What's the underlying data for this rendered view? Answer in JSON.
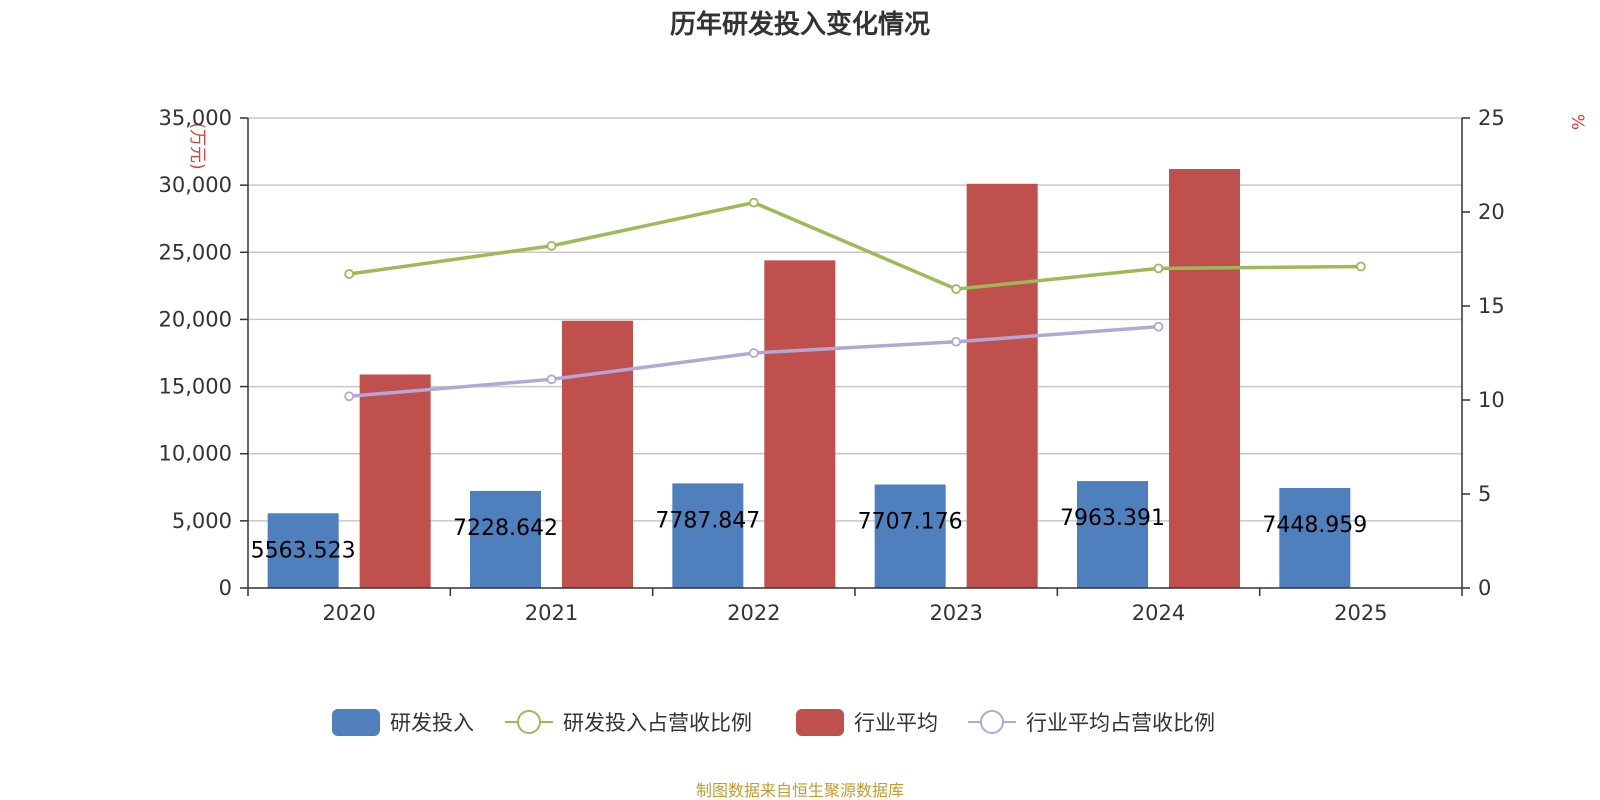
{
  "chart_data": {
    "type": "bar",
    "title": "历年研发投入变化情况",
    "categories": [
      "2020",
      "2021",
      "2022",
      "2023",
      "2024",
      "2025"
    ],
    "y_left": {
      "unit": "(万元)",
      "min": 0,
      "max": 35000,
      "ticks": [
        0,
        5000,
        10000,
        15000,
        20000,
        25000,
        30000,
        35000
      ],
      "tick_labels": [
        "0",
        "5,000",
        "10,000",
        "15,000",
        "20,000",
        "25,000",
        "30,000",
        "35,000"
      ]
    },
    "y_right": {
      "unit": "%",
      "min": 0,
      "max": 25,
      "ticks": [
        0,
        5,
        10,
        15,
        20,
        25
      ],
      "tick_labels": [
        "0",
        "5",
        "10",
        "15",
        "20",
        "25"
      ]
    },
    "grid": true,
    "legend_position": "bottom",
    "series": [
      {
        "name": "研发投入",
        "type": "bar",
        "axis": "left",
        "color": "#4f7fbd",
        "values": [
          5563.523,
          7228.642,
          7787.847,
          7707.176,
          7963.391,
          7448.959
        ],
        "labels": [
          "5563.523",
          "7228.642",
          "7787.847",
          "7707.176",
          "7963.391",
          "7448.959"
        ]
      },
      {
        "name": "研发投入占营收比例",
        "type": "line",
        "axis": "right",
        "color": "#9bbb59",
        "values": [
          16.7,
          18.2,
          20.5,
          15.9,
          17.0,
          17.1
        ]
      },
      {
        "name": "行业平均",
        "type": "bar",
        "axis": "left",
        "color": "#c0504d",
        "values": [
          15900,
          19900,
          24400,
          30100,
          31200,
          null
        ]
      },
      {
        "name": "行业平均占营收比例",
        "type": "line",
        "axis": "right",
        "color": "#b4a7d6",
        "values": [
          10.2,
          11.1,
          12.5,
          13.1,
          13.9,
          null
        ]
      }
    ],
    "source": "制图数据来自恒生聚源数据库"
  }
}
